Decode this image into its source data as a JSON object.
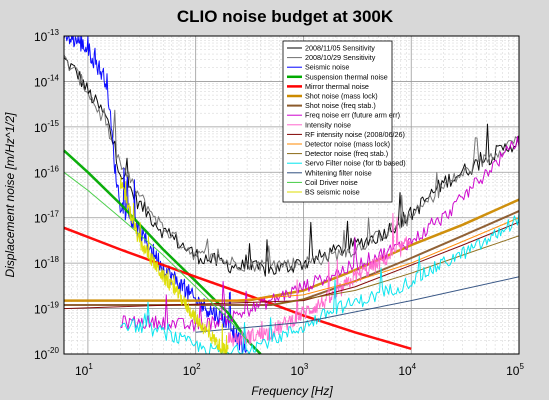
{
  "chart_data": {
    "type": "line",
    "title": "CLIO noise budget at 300K",
    "xlabel": "Frequency [Hz]",
    "ylabel": "Displacement noise [m/Hz^1/2]",
    "xscale": "log",
    "yscale": "log",
    "xlim": [
      6,
      100000
    ],
    "ylim": [
      1e-20,
      1e-13
    ],
    "grid": true,
    "legend_position": "top-right",
    "x_ticks": [
      {
        "base": "10",
        "exp": "1",
        "value": 10
      },
      {
        "base": "10",
        "exp": "2",
        "value": 100
      },
      {
        "base": "10",
        "exp": "3",
        "value": 1000
      },
      {
        "base": "10",
        "exp": "4",
        "value": 10000
      },
      {
        "base": "10",
        "exp": "5",
        "value": 100000
      }
    ],
    "y_ticks": [
      {
        "base": "10",
        "exp": "-13",
        "value": 1e-13
      },
      {
        "base": "10",
        "exp": "-14",
        "value": 1e-14
      },
      {
        "base": "10",
        "exp": "-15",
        "value": 1e-15
      },
      {
        "base": "10",
        "exp": "-16",
        "value": 1e-16
      },
      {
        "base": "10",
        "exp": "-17",
        "value": 1e-17
      },
      {
        "base": "10",
        "exp": "-18",
        "value": 1e-18
      },
      {
        "base": "10",
        "exp": "-19",
        "value": 1e-19
      },
      {
        "base": "10",
        "exp": "-20",
        "value": 1e-20
      }
    ],
    "series": [
      {
        "name": "2008/11/05 Sensitivity",
        "color": "#000000",
        "width": 1,
        "noisy": 0.35,
        "points": [
          [
            6,
            3e-14
          ],
          [
            8,
            1.5e-14
          ],
          [
            10,
            6e-15
          ],
          [
            15,
            1.5e-15
          ],
          [
            20,
            1e-16
          ],
          [
            30,
            2e-17
          ],
          [
            50,
            5e-18
          ],
          [
            100,
            1.5e-18
          ],
          [
            200,
            9e-19
          ],
          [
            500,
            7e-19
          ],
          [
            1000,
            1e-18
          ],
          [
            2000,
            1.8e-18
          ],
          [
            5000,
            4e-18
          ],
          [
            10000,
            1.2e-17
          ],
          [
            20000,
            6e-17
          ],
          [
            50000,
            2e-16
          ],
          [
            100000,
            5e-16
          ]
        ]
      },
      {
        "name": "2008/10/29 Sensitivity",
        "color": "#707070",
        "width": 1,
        "noisy": 0.3,
        "points": [
          [
            6,
            3e-14
          ],
          [
            8,
            1.4e-14
          ],
          [
            10,
            6e-15
          ],
          [
            15,
            1e-15
          ],
          [
            20,
            1.5e-16
          ],
          [
            30,
            3e-17
          ],
          [
            50,
            6e-18
          ],
          [
            100,
            1.5e-18
          ],
          [
            300,
            9e-19
          ],
          [
            1000,
            1e-18
          ],
          [
            3000,
            2e-18
          ],
          [
            10000,
            1e-17
          ],
          [
            20000,
            5e-17
          ],
          [
            50000,
            2e-16
          ],
          [
            100000,
            6e-16
          ]
        ]
      },
      {
        "name": "Seismic noise",
        "color": "#0000ff",
        "width": 1,
        "noisy": 0.4,
        "points": [
          [
            6,
            1e-13
          ],
          [
            8,
            8e-14
          ],
          [
            10,
            5e-14
          ],
          [
            15,
            1e-14
          ],
          [
            18,
            1e-16
          ],
          [
            20,
            2e-17
          ],
          [
            30,
            5e-18
          ],
          [
            50,
            8e-19
          ],
          [
            100,
            1.5e-19
          ],
          [
            200,
            5e-20
          ],
          [
            300,
            1e-20
          ]
        ]
      },
      {
        "name": "Suspension thermal noise",
        "color": "#00aa00",
        "width": 2.5,
        "noisy": 0,
        "points": [
          [
            6,
            3e-16
          ],
          [
            10,
            1e-16
          ],
          [
            20,
            2e-17
          ],
          [
            50,
            2e-18
          ],
          [
            100,
            4e-19
          ],
          [
            200,
            8e-20
          ],
          [
            300,
            2e-20
          ],
          [
            400,
            1e-20
          ]
        ]
      },
      {
        "name": "Mirror thermal noise",
        "color": "#ff0000",
        "width": 2.5,
        "noisy": 0,
        "points": [
          [
            6,
            6e-18
          ],
          [
            20,
            2e-18
          ],
          [
            100,
            5e-19
          ],
          [
            500,
            1.3e-19
          ],
          [
            1000,
            7e-20
          ],
          [
            3000,
            3e-20
          ],
          [
            10000,
            1.3e-20
          ]
        ]
      },
      {
        "name": "Shot noise (mass lock)",
        "color": "#cc8a00",
        "width": 2.5,
        "noisy": 0,
        "points": [
          [
            6,
            1.5e-19
          ],
          [
            300,
            1.5e-19
          ],
          [
            1000,
            2.5e-19
          ],
          [
            3000,
            7e-19
          ],
          [
            10000,
            2.5e-18
          ],
          [
            30000,
            7e-18
          ],
          [
            100000,
            2.5e-17
          ]
        ]
      },
      {
        "name": "Shot noise (freq stab.)",
        "color": "#8b5a2b",
        "width": 2,
        "noisy": 0,
        "points": [
          [
            6,
            1.2e-19
          ],
          [
            500,
            1.2e-19
          ],
          [
            1000,
            1.6e-19
          ],
          [
            3000,
            4e-19
          ],
          [
            10000,
            1.3e-18
          ],
          [
            30000,
            4e-18
          ],
          [
            100000,
            1.4e-17
          ]
        ]
      },
      {
        "name": "Freq noise err (future arm err)",
        "color": "#cc00cc",
        "width": 1,
        "noisy": 0.3,
        "points": [
          [
            20,
            5e-20
          ],
          [
            50,
            5e-20
          ],
          [
            100,
            4e-20
          ],
          [
            200,
            6e-20
          ],
          [
            500,
            1.5e-19
          ],
          [
            1000,
            3e-19
          ],
          [
            2000,
            6e-19
          ],
          [
            5000,
            1.5e-18
          ],
          [
            10000,
            3e-18
          ],
          [
            20000,
            1e-17
          ],
          [
            50000,
            1e-16
          ],
          [
            100000,
            5e-16
          ]
        ]
      },
      {
        "name": "Intensity noise",
        "color": "#ff66cc",
        "width": 1,
        "noisy": 0.35,
        "points": [
          [
            200,
            2e-20
          ],
          [
            500,
            3e-20
          ],
          [
            1000,
            8e-20
          ],
          [
            2000,
            2e-19
          ],
          [
            3000,
            5e-19
          ],
          [
            5000,
            1e-18
          ],
          [
            10000,
            3e-18
          ]
        ]
      },
      {
        "name": "RF intensity noise (2008/06/26)",
        "color": "#800000",
        "width": 1,
        "noisy": 0,
        "points": [
          [
            6,
            1e-19
          ],
          [
            1000,
            1.5e-19
          ],
          [
            3000,
            3e-19
          ],
          [
            10000,
            9e-19
          ],
          [
            30000,
            2.5e-18
          ],
          [
            100000,
            8e-18
          ]
        ]
      },
      {
        "name": "Detector noise (mass lock)",
        "color": "#ff8800",
        "width": 1,
        "noisy": 0,
        "points": [
          [
            200,
            1.5e-19
          ],
          [
            1000,
            2e-19
          ],
          [
            3000,
            4e-19
          ],
          [
            10000,
            1e-18
          ],
          [
            30000,
            3e-18
          ],
          [
            100000,
            1e-17
          ]
        ]
      },
      {
        "name": "Detector noise (freq stab.)",
        "color": "#8b6914",
        "width": 1,
        "noisy": 0,
        "points": [
          [
            500,
            1.2e-19
          ],
          [
            3000,
            2.5e-19
          ],
          [
            10000,
            6e-19
          ],
          [
            30000,
            1.5e-18
          ],
          [
            100000,
            4e-18
          ]
        ]
      },
      {
        "name": "Servo Filter noise (for tb based)",
        "color": "#00e5ee",
        "width": 1,
        "noisy": 0.3,
        "points": [
          [
            20,
            5e-20
          ],
          [
            50,
            3e-20
          ],
          [
            100,
            1.5e-20
          ],
          [
            200,
            1e-20
          ],
          [
            500,
            2e-20
          ],
          [
            1000,
            4e-20
          ],
          [
            2000,
            1e-19
          ],
          [
            5000,
            2e-19
          ],
          [
            10000,
            4e-19
          ],
          [
            20000,
            1e-18
          ],
          [
            50000,
            3e-18
          ],
          [
            100000,
            1e-17
          ]
        ]
      },
      {
        "name": "Whitening filter noise",
        "color": "#2f4f7f",
        "width": 1,
        "noisy": 0,
        "points": [
          [
            100,
            3e-20
          ],
          [
            1000,
            5e-20
          ],
          [
            10000,
            1.5e-19
          ],
          [
            100000,
            5e-19
          ]
        ]
      },
      {
        "name": "Coil Driver noise",
        "color": "#44cc44",
        "width": 1,
        "noisy": 0,
        "points": [
          [
            6,
            1e-16
          ],
          [
            10,
            4e-17
          ],
          [
            20,
            1e-17
          ],
          [
            50,
            1.5e-18
          ],
          [
            100,
            3e-19
          ],
          [
            200,
            6e-20
          ],
          [
            300,
            2e-20
          ]
        ]
      },
      {
        "name": "BS seismic noise",
        "color": "#dddd00",
        "width": 1,
        "noisy": 0.3,
        "points": [
          [
            20,
            6e-17
          ],
          [
            30,
            3e-18
          ],
          [
            50,
            5e-19
          ],
          [
            70,
            2e-19
          ],
          [
            100,
            6e-20
          ],
          [
            150,
            2e-20
          ],
          [
            200,
            1e-20
          ]
        ]
      }
    ]
  }
}
